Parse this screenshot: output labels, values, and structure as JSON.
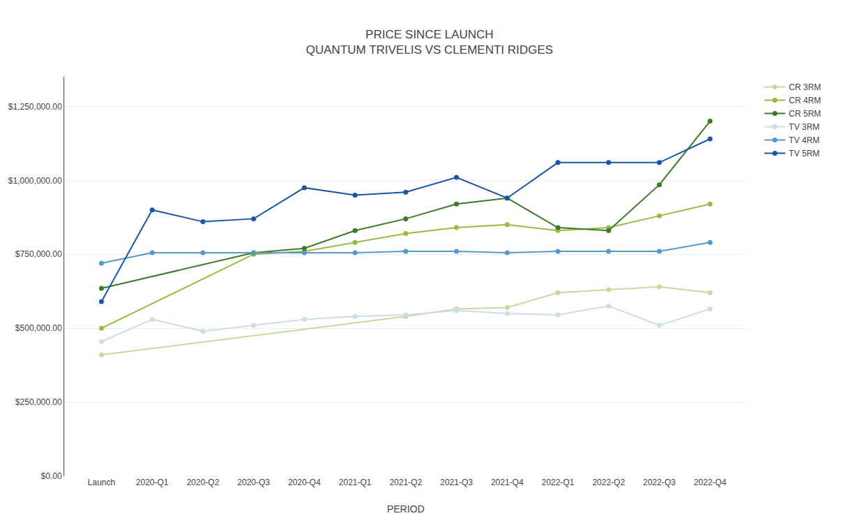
{
  "chart_data": {
    "type": "line",
    "title": "PRICE SINCE LAUNCH\nQUANTUM TRIVELIS VS CLEMENTI RIDGES",
    "x_label": "PERIOD",
    "categories": [
      "Launch",
      "2020-Q1",
      "2020-Q2",
      "2020-Q3",
      "2020-Q4",
      "2021-Q1",
      "2021-Q2",
      "2021-Q3",
      "2021-Q4",
      "2022-Q1",
      "2022-Q2",
      "2022-Q3",
      "2022-Q4"
    ],
    "series": [
      {
        "name": "CR 3RM",
        "color": "#c8d9a0",
        "values": [
          410000,
          null,
          null,
          null,
          null,
          null,
          540000,
          565000,
          570000,
          620000,
          630000,
          640000,
          620000
        ]
      },
      {
        "name": "CR 4RM",
        "color": "#99bb44",
        "values": [
          500000,
          null,
          null,
          750000,
          760000,
          790000,
          820000,
          840000,
          850000,
          830000,
          840000,
          880000,
          920000
        ]
      },
      {
        "name": "CR 5RM",
        "color": "#3a7a28",
        "values": [
          635000,
          null,
          null,
          755000,
          770000,
          830000,
          870000,
          920000,
          940000,
          840000,
          830000,
          985000,
          1200000
        ]
      },
      {
        "name": "TV 3RM",
        "color": "#ccdde8",
        "values": [
          455000,
          530000,
          490000,
          510000,
          530000,
          540000,
          545000,
          560000,
          550000,
          545000,
          575000,
          510000,
          565000
        ]
      },
      {
        "name": "TV 4RM",
        "color": "#5599cc",
        "values": [
          720000,
          755000,
          755000,
          755000,
          755000,
          755000,
          760000,
          760000,
          755000,
          760000,
          760000,
          760000,
          790000
        ]
      },
      {
        "name": "TV 5RM",
        "color": "#1a55aa",
        "values": [
          590000,
          900000,
          860000,
          870000,
          975000,
          950000,
          960000,
          1010000,
          940000,
          1060000,
          1060000,
          1060000,
          1140000
        ]
      }
    ],
    "ylim": [
      0,
      1350000
    ],
    "yticks": [
      {
        "value": 0,
        "label": "$0.00"
      },
      {
        "value": 250000,
        "label": "$250,000.00"
      },
      {
        "value": 500000,
        "label": "$500,000.00"
      },
      {
        "value": 750000,
        "label": "$750,000.00"
      },
      {
        "value": 1000000,
        "label": "$1,000,000.00"
      },
      {
        "value": 1250000,
        "label": "$1,250,000.00"
      }
    ],
    "grid": true,
    "legend": "right",
    "marker": "circle"
  }
}
